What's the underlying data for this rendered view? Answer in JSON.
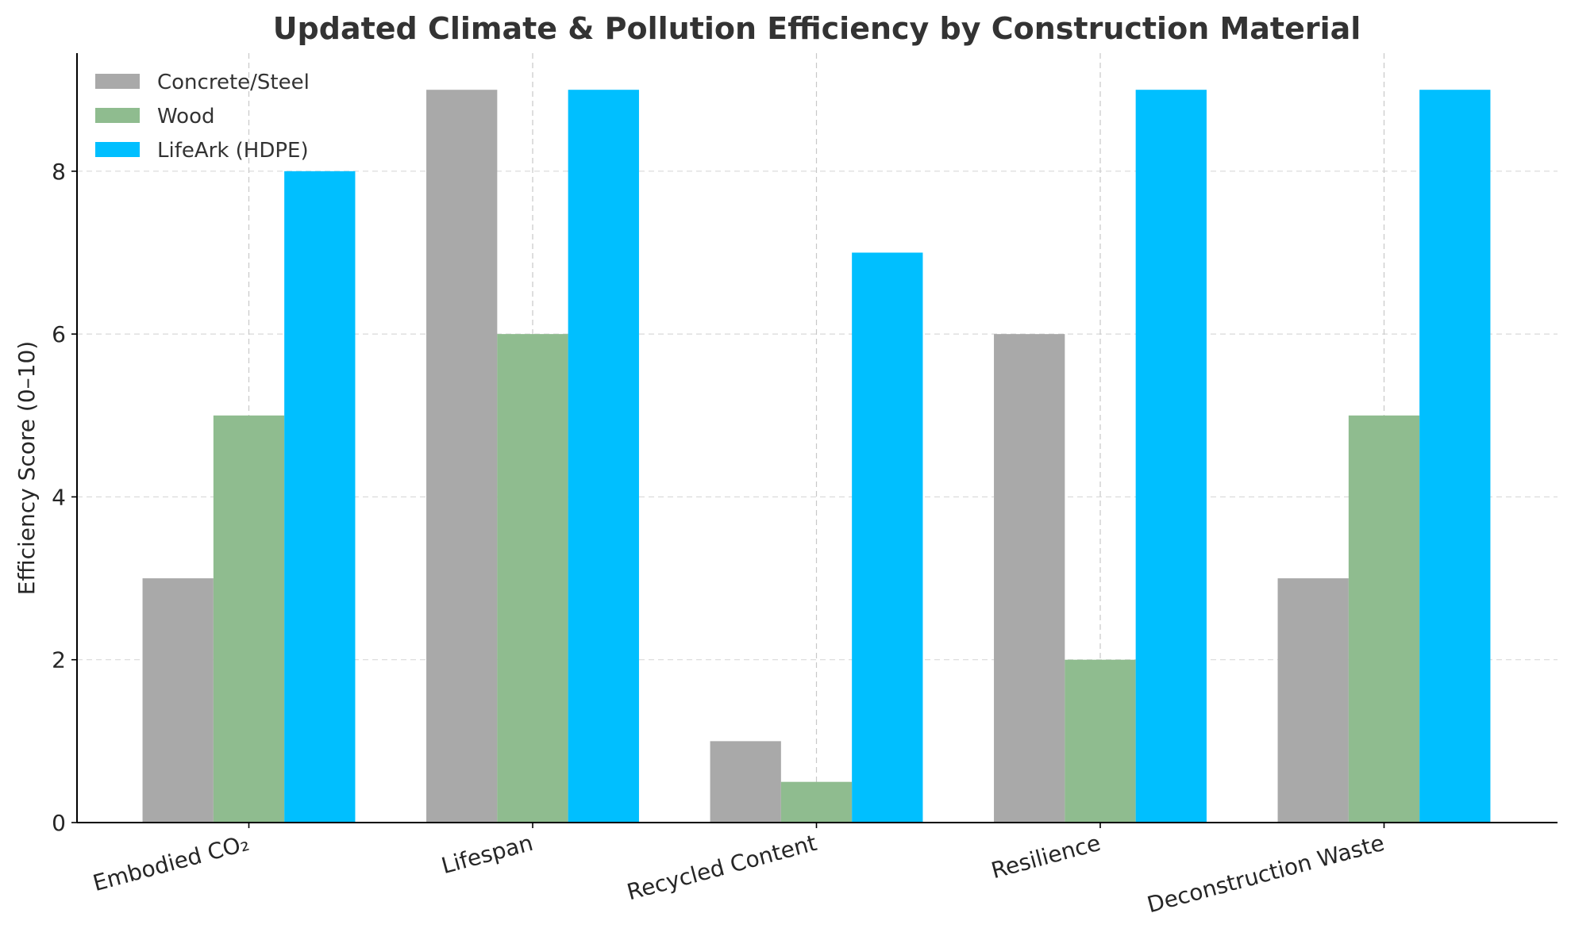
{
  "chart_data": {
    "type": "bar",
    "title": "Updated Climate & Pollution Efficiency by Construction Material",
    "xlabel": "",
    "ylabel": "Efficiency Score (0–10)",
    "categories": [
      "Embodied CO₂",
      "Lifespan",
      "Recycled Content",
      "Resilience",
      "Deconstruction Waste"
    ],
    "series": [
      {
        "name": "Concrete/Steel",
        "color": "#a9a9a9",
        "values": [
          3,
          9,
          1,
          6,
          3
        ]
      },
      {
        "name": "Wood",
        "color": "#8fbc8f",
        "values": [
          5,
          6,
          0.5,
          2,
          5
        ]
      },
      {
        "name": "LifeArk (HDPE)",
        "color": "#00bfff",
        "values": [
          8,
          9,
          7,
          9,
          9
        ]
      }
    ],
    "ylim": [
      0,
      9.45
    ],
    "yticks": [
      0,
      2,
      4,
      6,
      8
    ],
    "ytick_labels": [
      "0",
      "2",
      "4",
      "6",
      "8"
    ],
    "grid": true,
    "legend_position": "top-left",
    "xtick_rotation": "angled"
  }
}
